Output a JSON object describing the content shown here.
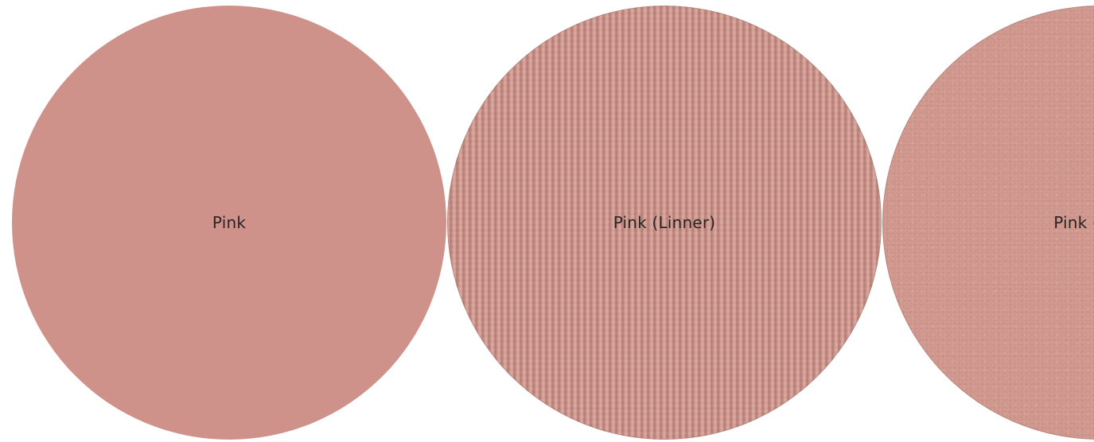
{
  "swatches": [
    {
      "label": "Pink",
      "finish": "plain",
      "color": "#cf928a"
    },
    {
      "label": "Pink (Linner)",
      "finish": "liner",
      "color": "#cf9287"
    },
    {
      "label": "Pink (Blast)",
      "finish": "blast",
      "color": "#cf968c"
    }
  ]
}
